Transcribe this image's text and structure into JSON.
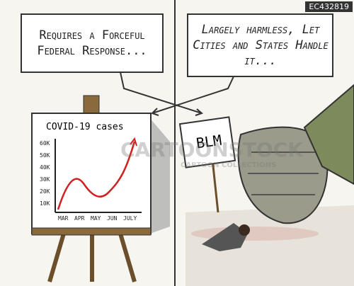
{
  "id_tag": "EC432819",
  "left_panel": {
    "caption": "Requires a Forceful Federal Response...",
    "chart": {
      "title": "COVID-19 cases",
      "y_labels": [
        "60K",
        "50K",
        "40K",
        "30K",
        "20K",
        "10K"
      ],
      "x_labels": [
        "MAR",
        "APR",
        "MAY",
        "JUN",
        "JULY"
      ]
    }
  },
  "right_panel": {
    "caption": "Largely harmless, Let Cities and States Handle it...",
    "sign": "BLM"
  },
  "watermark": {
    "brand": "CARTOONSTOCK",
    "sub": "CARTOON COLLECTIONS"
  }
}
